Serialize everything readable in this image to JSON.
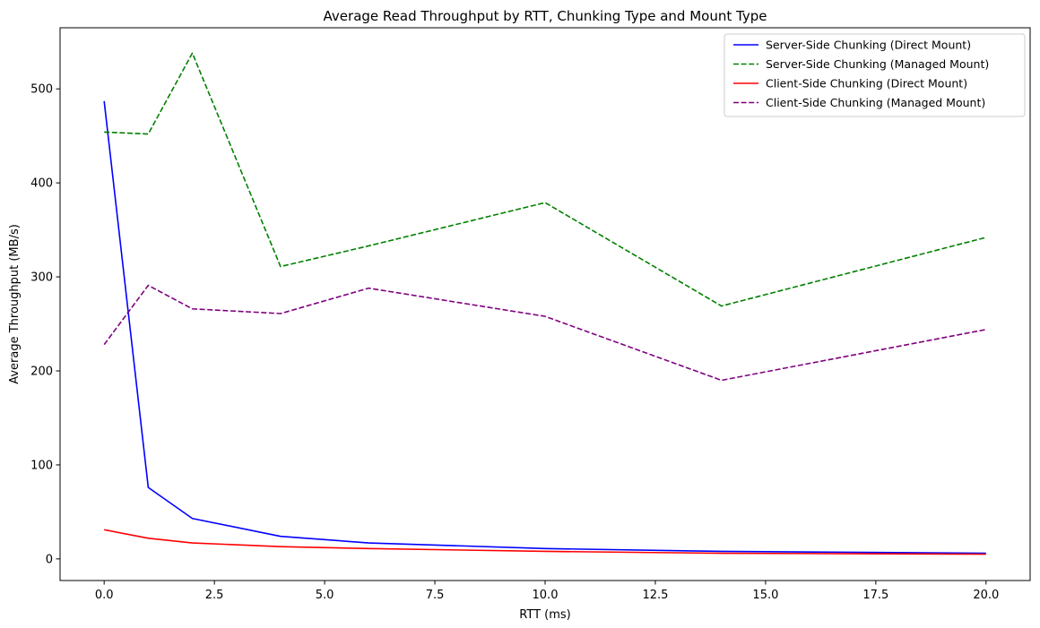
{
  "chart_data": {
    "type": "line",
    "title": "Average Read Throughput by RTT, Chunking Type and Mount Type",
    "xlabel": "RTT (ms)",
    "ylabel": "Average Throughput (MB/s)",
    "xlim": [
      -1,
      21
    ],
    "ylim": [
      -23,
      565
    ],
    "x_ticks": [
      0.0,
      2.5,
      5.0,
      7.5,
      10.0,
      12.5,
      15.0,
      17.5,
      20.0
    ],
    "x_tick_labels": [
      "0.0",
      "2.5",
      "5.0",
      "7.5",
      "10.0",
      "12.5",
      "15.0",
      "17.5",
      "20.0"
    ],
    "y_ticks": [
      0,
      100,
      200,
      300,
      400,
      500
    ],
    "y_tick_labels": [
      "0",
      "100",
      "200",
      "300",
      "400",
      "500"
    ],
    "grid": false,
    "legend_position": "top-right",
    "x": [
      0,
      1,
      2,
      4,
      6,
      10,
      14,
      20
    ],
    "series": [
      {
        "name": "Server-Side Chunking (Direct Mount)",
        "color": "#0000ff",
        "dash": "solid",
        "values": [
          487,
          76,
          43,
          24,
          17,
          11,
          8,
          6
        ]
      },
      {
        "name": "Server-Side Chunking (Managed Mount)",
        "color": "#008000",
        "dash": "dashed",
        "values": [
          454,
          452,
          538,
          311,
          333,
          379,
          269,
          342
        ]
      },
      {
        "name": "Client-Side Chunking (Direct Mount)",
        "color": "#ff0000",
        "dash": "solid",
        "values": [
          31,
          22,
          17,
          13,
          11,
          8,
          6,
          5
        ]
      },
      {
        "name": "Client-Side Chunking (Managed Mount)",
        "color": "#800080",
        "dash": "dashed",
        "values": [
          228,
          291,
          266,
          261,
          288,
          258,
          190,
          244
        ]
      }
    ]
  }
}
